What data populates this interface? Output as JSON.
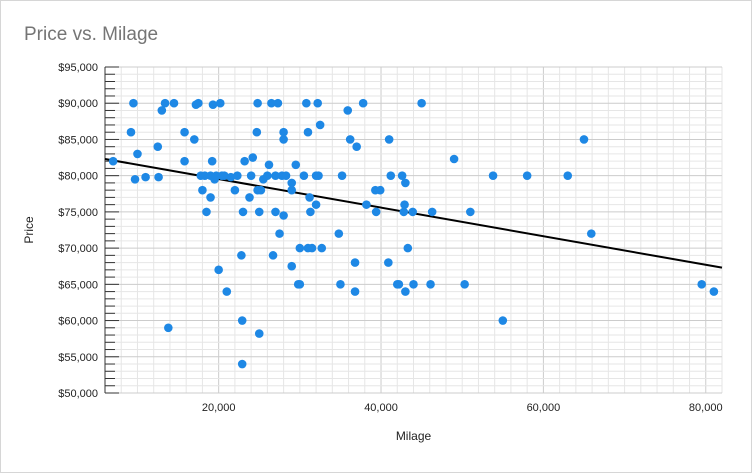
{
  "chart_data": {
    "type": "scatter",
    "title": "Price vs. Milage",
    "xlabel": "Milage",
    "ylabel": "Price",
    "xlim": [
      6000,
      82000
    ],
    "ylim": [
      50000,
      95000
    ],
    "x_ticks": [
      20000,
      40000,
      60000,
      80000
    ],
    "x_tick_labels": [
      "20,000",
      "40,000",
      "60,000",
      "80,000"
    ],
    "y_ticks": [
      50000,
      55000,
      60000,
      65000,
      70000,
      75000,
      80000,
      85000,
      90000,
      95000
    ],
    "y_tick_labels": [
      "$50,000",
      "$55,000",
      "$60,000",
      "$65,000",
      "$70,000",
      "$75,000",
      "$80,000",
      "$85,000",
      "$90,000",
      "$95,000"
    ],
    "grid": true,
    "point_color": "#1e88e5",
    "trendline": {
      "color": "#000000",
      "x": [
        6000,
        82000
      ],
      "y": [
        82300,
        67300
      ]
    },
    "points": [
      [
        7000,
        82000
      ],
      [
        9500,
        90000
      ],
      [
        9200,
        86000
      ],
      [
        9700,
        79500
      ],
      [
        10000,
        83000
      ],
      [
        11000,
        79800
      ],
      [
        12500,
        84000
      ],
      [
        12600,
        79800
      ],
      [
        13000,
        89000
      ],
      [
        13400,
        90000
      ],
      [
        13800,
        59000
      ],
      [
        14500,
        90000
      ],
      [
        15800,
        86000
      ],
      [
        15800,
        82000
      ],
      [
        17000,
        85000
      ],
      [
        17200,
        89800
      ],
      [
        17500,
        90000
      ],
      [
        17800,
        80000
      ],
      [
        18000,
        78000
      ],
      [
        18300,
        80000
      ],
      [
        18500,
        75000
      ],
      [
        19000,
        80000
      ],
      [
        19000,
        77000
      ],
      [
        19200,
        82000
      ],
      [
        19300,
        89800
      ],
      [
        19500,
        79500
      ],
      [
        19700,
        80000
      ],
      [
        20000,
        67000
      ],
      [
        20200,
        90000
      ],
      [
        20400,
        80000
      ],
      [
        20700,
        80000
      ],
      [
        21000,
        64000
      ],
      [
        21500,
        79800
      ],
      [
        22000,
        78000
      ],
      [
        22300,
        80000
      ],
      [
        22800,
        69000
      ],
      [
        22900,
        60000
      ],
      [
        22900,
        54000
      ],
      [
        23000,
        75000
      ],
      [
        23200,
        82000
      ],
      [
        23800,
        77000
      ],
      [
        24000,
        80000
      ],
      [
        24200,
        82500
      ],
      [
        24700,
        86000
      ],
      [
        24800,
        78000
      ],
      [
        24800,
        90000
      ],
      [
        25000,
        58200
      ],
      [
        25000,
        75000
      ],
      [
        25200,
        78000
      ],
      [
        25500,
        79500
      ],
      [
        26000,
        80000
      ],
      [
        26200,
        81500
      ],
      [
        26500,
        90000
      ],
      [
        26700,
        69000
      ],
      [
        27000,
        80000
      ],
      [
        27000,
        75000
      ],
      [
        27300,
        90000
      ],
      [
        27500,
        72000
      ],
      [
        27800,
        80000
      ],
      [
        28000,
        86000
      ],
      [
        28000,
        85000
      ],
      [
        28000,
        74500
      ],
      [
        28300,
        80000
      ],
      [
        29000,
        67500
      ],
      [
        29000,
        78000
      ],
      [
        29000,
        79000
      ],
      [
        29500,
        81500
      ],
      [
        29800,
        65000
      ],
      [
        30000,
        70000
      ],
      [
        30000,
        65000
      ],
      [
        30500,
        80000
      ],
      [
        30800,
        90000
      ],
      [
        31000,
        70000
      ],
      [
        31000,
        86000
      ],
      [
        31200,
        77000
      ],
      [
        31300,
        75000
      ],
      [
        31500,
        70000
      ],
      [
        32000,
        76000
      ],
      [
        32000,
        80000
      ],
      [
        32200,
        90000
      ],
      [
        32300,
        80000
      ],
      [
        32500,
        87000
      ],
      [
        32700,
        70000
      ],
      [
        34800,
        72000
      ],
      [
        35000,
        65000
      ],
      [
        35200,
        80000
      ],
      [
        35900,
        89000
      ],
      [
        36200,
        85000
      ],
      [
        36800,
        64000
      ],
      [
        36800,
        68000
      ],
      [
        37000,
        84000
      ],
      [
        37800,
        90000
      ],
      [
        38200,
        76000
      ],
      [
        39300,
        78000
      ],
      [
        39400,
        75000
      ],
      [
        39900,
        78000
      ],
      [
        40900,
        68000
      ],
      [
        41000,
        85000
      ],
      [
        41200,
        80000
      ],
      [
        42000,
        65000
      ],
      [
        42200,
        65000
      ],
      [
        42600,
        80000
      ],
      [
        42800,
        75000
      ],
      [
        42900,
        76000
      ],
      [
        43000,
        64000
      ],
      [
        43000,
        79000
      ],
      [
        43300,
        70000
      ],
      [
        43900,
        75000
      ],
      [
        44000,
        65000
      ],
      [
        45000,
        90000
      ],
      [
        46100,
        65000
      ],
      [
        46300,
        75000
      ],
      [
        49000,
        82300
      ],
      [
        50300,
        65000
      ],
      [
        51000,
        75000
      ],
      [
        53800,
        80000
      ],
      [
        55000,
        60000
      ],
      [
        58000,
        80000
      ],
      [
        63000,
        80000
      ],
      [
        65000,
        85000
      ],
      [
        65900,
        72000
      ],
      [
        79500,
        65000
      ],
      [
        81000,
        64000
      ]
    ]
  }
}
